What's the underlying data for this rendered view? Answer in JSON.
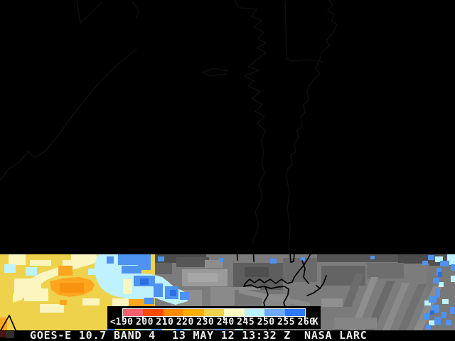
{
  "footer": {
    "instrument": "GOES-E 10.7 BAND 4",
    "timestamp": "13 MAY 12 13:32 Z",
    "credit": "NASA LARC"
  },
  "legend": {
    "less_than_symbol": "<",
    "unit": "K",
    "tick_labels": [
      "190",
      "200",
      "210",
      "220",
      "230",
      "240",
      "245",
      "250",
      "255",
      "260"
    ],
    "segment_colors": [
      "#f8606f",
      "#fa4a00",
      "#ff8c00",
      "#ffae00",
      "#eed24b",
      "#fffcc2",
      "#b9f3fe",
      "#6fa9f7",
      "#2e79f7"
    ]
  },
  "palette": {
    "background": "#000000",
    "text": "#ededed",
    "cold_yellow": "#efd24c",
    "cold_cream": "#fbf5c0",
    "cold_orange": "#ffa51f",
    "cold_pale_cyan": "#bdf2fe",
    "cold_blue": "#4e92f2",
    "cold_deep_blue": "#2c6fe2",
    "warm_cloud_gray": "#7c7c7c",
    "coastline": "#000000"
  }
}
